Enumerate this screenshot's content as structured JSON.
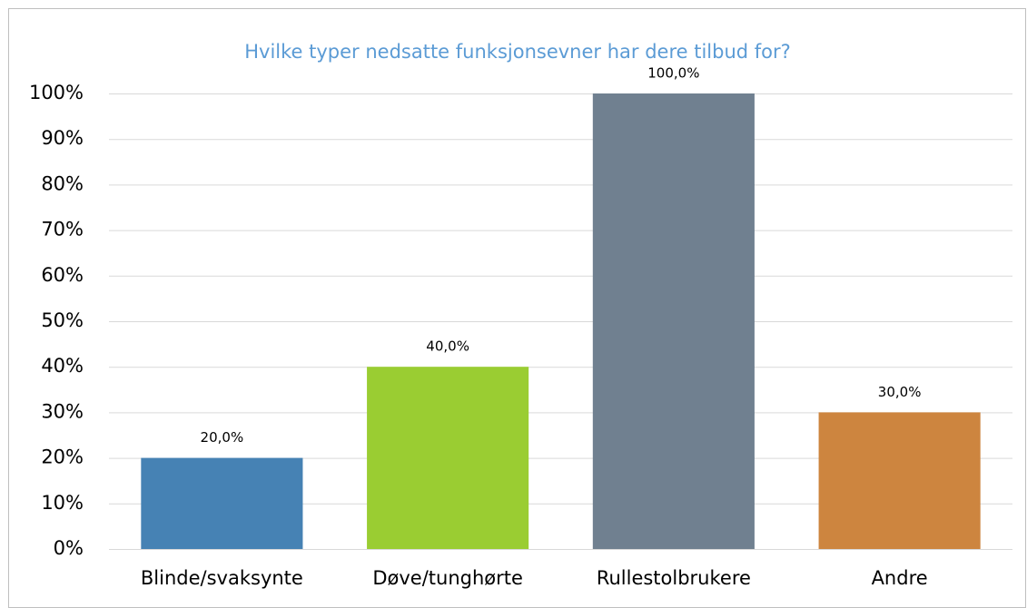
{
  "chart_data": {
    "type": "bar",
    "title": "Hvilke typer nedsatte funksjonsevner har dere tilbud for?",
    "categories": [
      "Blinde/svaksynte",
      "Døve/tunghørte",
      "Rullestolbrukere",
      "Andre"
    ],
    "values": [
      20,
      40,
      100,
      30
    ],
    "value_labels": [
      "20,0%",
      "40,0%",
      "100,0%",
      "30,0%"
    ],
    "colors": [
      "#4682b4",
      "#9acd32",
      "#708090",
      "#cd853f"
    ],
    "ylim": [
      0,
      100
    ],
    "yticks": [
      {
        "value": 0,
        "label": "0%"
      },
      {
        "value": 10,
        "label": "10%"
      },
      {
        "value": 20,
        "label": "20%"
      },
      {
        "value": 30,
        "label": "30%"
      },
      {
        "value": 40,
        "label": "40%"
      },
      {
        "value": 50,
        "label": "50%"
      },
      {
        "value": 60,
        "label": "60%"
      },
      {
        "value": 70,
        "label": "70%"
      },
      {
        "value": 80,
        "label": "80%"
      },
      {
        "value": 90,
        "label": "90%"
      },
      {
        "value": 100,
        "label": "100%"
      }
    ],
    "grid": true
  }
}
